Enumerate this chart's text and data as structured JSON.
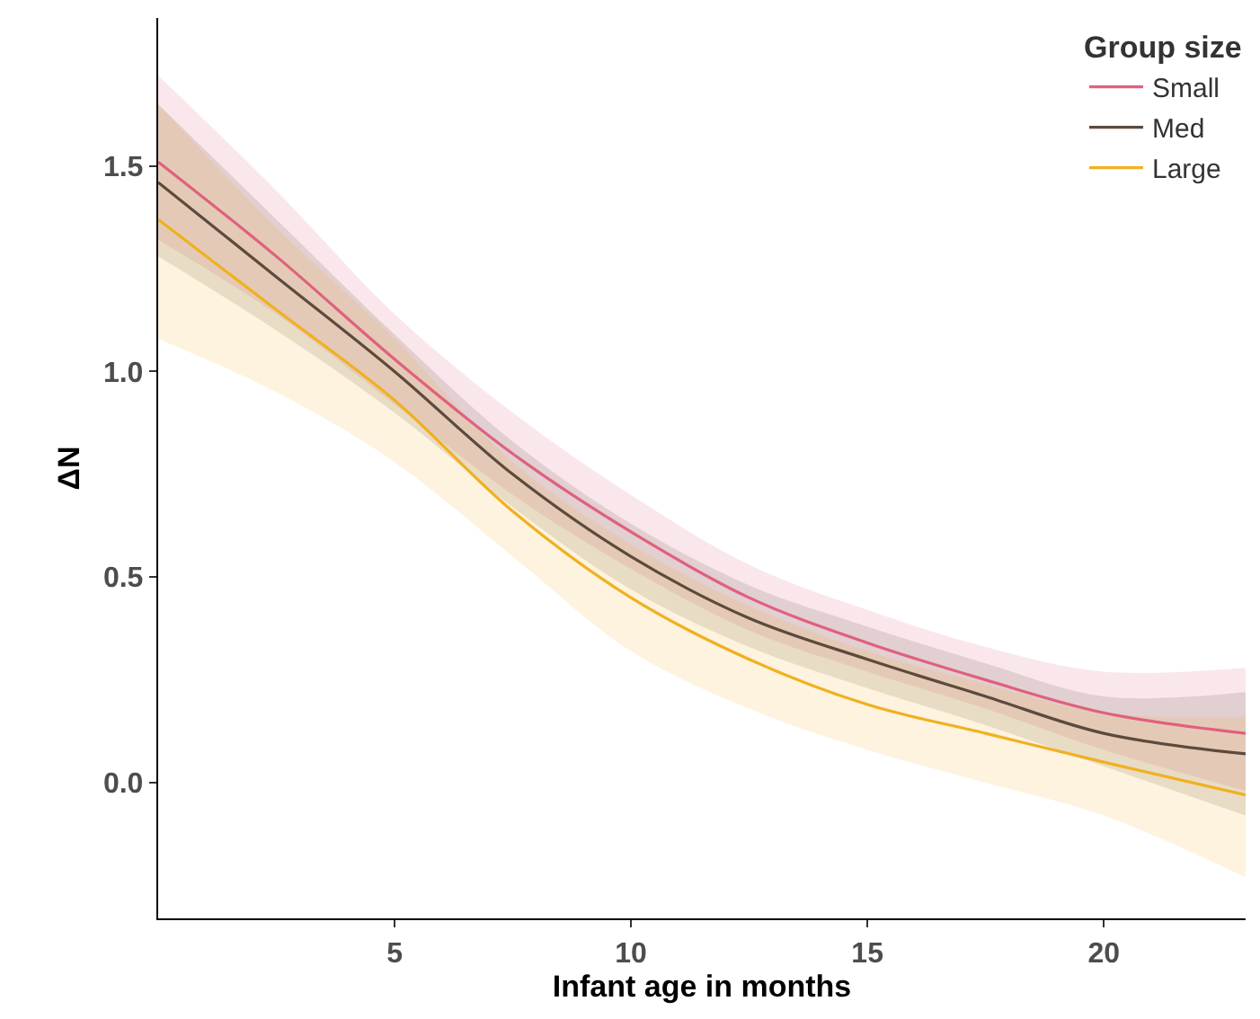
{
  "chart_data": {
    "type": "line",
    "xlabel": "Infant age in months",
    "ylabel": "ΔN",
    "legend_title": "Group size",
    "legend": "top right",
    "marker": "none",
    "line_style": "solid",
    "xlim": [
      0,
      23
    ],
    "xticks": [
      5,
      10,
      15,
      20
    ],
    "ylim": [
      -0.33,
      1.86
    ],
    "yticks": [
      {
        "value": 0,
        "label": "0.0"
      },
      0.5,
      {
        "value": 1,
        "label": "1.0"
      },
      1.5
    ],
    "x": [
      0,
      2.5,
      5,
      7.5,
      10,
      12.5,
      15,
      17.5,
      20,
      23
    ],
    "series": [
      {
        "name": "Small",
        "color": "#e0607e",
        "values": [
          1.51,
          1.28,
          1.03,
          0.8,
          0.61,
          0.45,
          0.34,
          0.25,
          0.17,
          0.12
        ],
        "lower": [
          1.32,
          1.14,
          0.92,
          0.7,
          0.52,
          0.37,
          0.27,
          0.18,
          0.08,
          -0.02
        ],
        "upper": [
          1.72,
          1.44,
          1.14,
          0.9,
          0.7,
          0.53,
          0.42,
          0.33,
          0.27,
          0.28
        ]
      },
      {
        "name": "Med",
        "color": "#5c4a3e",
        "values": [
          1.46,
          1.23,
          1.0,
          0.75,
          0.55,
          0.4,
          0.3,
          0.21,
          0.12,
          0.07
        ],
        "lower": [
          1.28,
          1.1,
          0.9,
          0.67,
          0.47,
          0.33,
          0.23,
          0.14,
          0.04,
          -0.08
        ],
        "upper": [
          1.65,
          1.37,
          1.09,
          0.83,
          0.63,
          0.48,
          0.38,
          0.29,
          0.21,
          0.22
        ]
      },
      {
        "name": "Large",
        "color": "#f0b020",
        "values": [
          1.37,
          1.15,
          0.93,
          0.66,
          0.45,
          0.3,
          0.19,
          0.12,
          0.05,
          -0.03
        ],
        "lower": [
          1.08,
          0.95,
          0.78,
          0.55,
          0.32,
          0.18,
          0.08,
          0.0,
          -0.08,
          -0.23
        ],
        "upper": [
          1.65,
          1.35,
          1.08,
          0.78,
          0.58,
          0.43,
          0.32,
          0.24,
          0.17,
          0.16
        ]
      }
    ]
  }
}
